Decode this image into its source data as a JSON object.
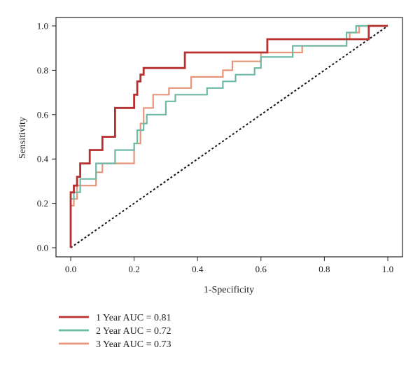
{
  "chart_data": {
    "type": "line",
    "title": "",
    "xlabel": "1-Specificity",
    "ylabel": "Sensitivity",
    "xlim": [
      0,
      1
    ],
    "ylim": [
      0,
      1
    ],
    "xticks": [
      0.0,
      0.2,
      0.4,
      0.6,
      0.8,
      1.0
    ],
    "yticks": [
      0.0,
      0.2,
      0.4,
      0.6,
      0.8,
      1.0
    ],
    "xtick_labels": [
      "0.0",
      "0.2",
      "0.4",
      "0.6",
      "0.8",
      "1.0"
    ],
    "ytick_labels": [
      "0.0",
      "0.2",
      "0.4",
      "0.6",
      "0.8",
      "1.0"
    ],
    "grid": false,
    "legend_position": "below-left",
    "reference_line": {
      "x": [
        0,
        1
      ],
      "y": [
        0,
        1
      ],
      "style": "dashed",
      "color": "#111111"
    },
    "series": [
      {
        "name": "1 Year AUC = 0.81",
        "color": "#b5302f",
        "x": [
          0,
          0,
          0.01,
          0.01,
          0.02,
          0.02,
          0.03,
          0.03,
          0.06,
          0.06,
          0.1,
          0.1,
          0.14,
          0.14,
          0.2,
          0.2,
          0.21,
          0.21,
          0.22,
          0.22,
          0.23,
          0.23,
          0.36,
          0.36,
          0.62,
          0.62,
          0.94,
          0.94,
          1.0
        ],
        "y": [
          0,
          0.25,
          0.25,
          0.28,
          0.28,
          0.32,
          0.32,
          0.38,
          0.38,
          0.44,
          0.44,
          0.5,
          0.5,
          0.63,
          0.63,
          0.69,
          0.69,
          0.75,
          0.75,
          0.78,
          0.78,
          0.81,
          0.81,
          0.88,
          0.88,
          0.94,
          0.94,
          1.0,
          1.0
        ]
      },
      {
        "name": "2 Year AUC = 0.72",
        "color": "#6cb9a6",
        "x": [
          0,
          0,
          0.01,
          0.01,
          0.03,
          0.03,
          0.08,
          0.08,
          0.14,
          0.14,
          0.2,
          0.2,
          0.21,
          0.21,
          0.23,
          0.23,
          0.24,
          0.24,
          0.3,
          0.3,
          0.33,
          0.33,
          0.43,
          0.43,
          0.48,
          0.48,
          0.52,
          0.52,
          0.58,
          0.58,
          0.6,
          0.6,
          0.7,
          0.7,
          0.87,
          0.87,
          0.9,
          0.9,
          1.0
        ],
        "y": [
          0,
          0.22,
          0.22,
          0.25,
          0.25,
          0.31,
          0.31,
          0.38,
          0.38,
          0.44,
          0.44,
          0.47,
          0.47,
          0.53,
          0.53,
          0.56,
          0.56,
          0.6,
          0.6,
          0.66,
          0.66,
          0.69,
          0.69,
          0.72,
          0.72,
          0.75,
          0.75,
          0.78,
          0.78,
          0.81,
          0.81,
          0.86,
          0.86,
          0.91,
          0.91,
          0.97,
          0.97,
          1.0,
          1.0
        ]
      },
      {
        "name": "3 Year AUC = 0.73",
        "color": "#e6957a",
        "x": [
          0,
          0,
          0.01,
          0.01,
          0.02,
          0.02,
          0.08,
          0.08,
          0.1,
          0.1,
          0.2,
          0.2,
          0.22,
          0.22,
          0.23,
          0.23,
          0.26,
          0.26,
          0.31,
          0.31,
          0.38,
          0.38,
          0.48,
          0.48,
          0.51,
          0.51,
          0.6,
          0.6,
          0.73,
          0.73,
          0.87,
          0.87,
          0.88,
          0.88,
          0.91,
          0.91,
          1.0
        ],
        "y": [
          0,
          0.19,
          0.19,
          0.22,
          0.22,
          0.28,
          0.28,
          0.34,
          0.34,
          0.38,
          0.38,
          0.47,
          0.47,
          0.56,
          0.56,
          0.63,
          0.63,
          0.69,
          0.69,
          0.72,
          0.72,
          0.77,
          0.77,
          0.8,
          0.8,
          0.84,
          0.84,
          0.88,
          0.88,
          0.91,
          0.91,
          0.94,
          0.94,
          0.97,
          0.97,
          1.0,
          1.0
        ]
      }
    ]
  }
}
